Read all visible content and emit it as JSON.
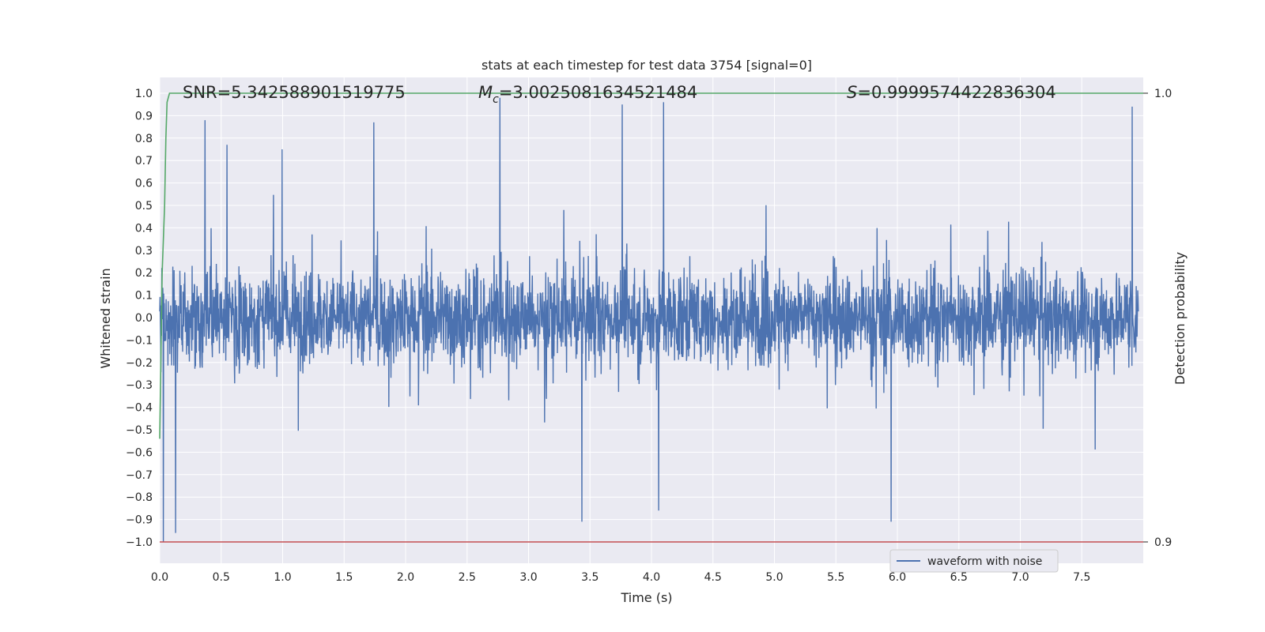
{
  "chart_data": {
    "type": "line",
    "title": "stats at each timestep for test data 3754 [signal=0]",
    "xlabel": "Time (s)",
    "ylabel": "Whitened strain",
    "ylabel_right": "Detection probability",
    "xlim": [
      0.0,
      8.0
    ],
    "ylim": [
      -1.0,
      1.0
    ],
    "ylim_right": [
      0.9,
      1.0
    ],
    "x_ticks": [
      "0.0",
      "0.5",
      "1.0",
      "1.5",
      "2.0",
      "2.5",
      "3.0",
      "3.5",
      "4.0",
      "4.5",
      "5.0",
      "5.5",
      "6.0",
      "6.5",
      "7.0",
      "7.5"
    ],
    "y_ticks": [
      "1.0",
      "0.9",
      "0.8",
      "0.7",
      "0.6",
      "0.5",
      "0.4",
      "0.3",
      "0.2",
      "0.1",
      "0.0",
      "−0.1",
      "−0.2",
      "−0.3",
      "−0.4",
      "−0.5",
      "−0.6",
      "−0.7",
      "−0.8",
      "−0.9",
      "−1.0"
    ],
    "y_ticks_right": [
      "1.0",
      "0.9"
    ],
    "grid": true,
    "legend_position": "lower-right",
    "annotations": {
      "snr": "SNR=5.342588901519775",
      "mc_symbol": "M",
      "mc_sub": "c",
      "mc_value": "=3.0025081634521484",
      "s_symbol": "S",
      "s_value": "=0.9999574422836304"
    },
    "series": [
      {
        "name": "waveform with noise",
        "color": "#4c72b0",
        "description_values": "dense noise, typical envelope about ±0.45, peaks to about 0.98 and -1.0",
        "peaks": [
          {
            "x": 0.03,
            "y": -1.0
          },
          {
            "x": 0.13,
            "y": -0.96
          },
          {
            "x": 0.37,
            "y": 0.88
          },
          {
            "x": 0.55,
            "y": 0.77
          },
          {
            "x": 1.0,
            "y": 0.75
          },
          {
            "x": 1.75,
            "y": 0.87
          },
          {
            "x": 2.78,
            "y": 0.98
          },
          {
            "x": 3.45,
            "y": -0.91
          },
          {
            "x": 3.78,
            "y": 0.95
          },
          {
            "x": 4.12,
            "y": 0.96
          },
          {
            "x": 4.08,
            "y": -0.86
          },
          {
            "x": 5.98,
            "y": -0.91
          },
          {
            "x": 7.95,
            "y": 0.94
          }
        ]
      },
      {
        "name": "",
        "color": "#55a868",
        "axis": "right",
        "x": [
          0.0,
          0.02,
          0.04,
          0.05,
          0.06,
          0.08,
          0.2,
          8.0
        ],
        "y": [
          0.923,
          0.96,
          0.975,
          0.99,
          0.998,
          1.0,
          1.0,
          1.0
        ]
      },
      {
        "name": "",
        "color": "#c44e52",
        "axis": "right",
        "x": [
          0.0,
          8.0
        ],
        "y": [
          0.9,
          0.9
        ]
      }
    ]
  }
}
